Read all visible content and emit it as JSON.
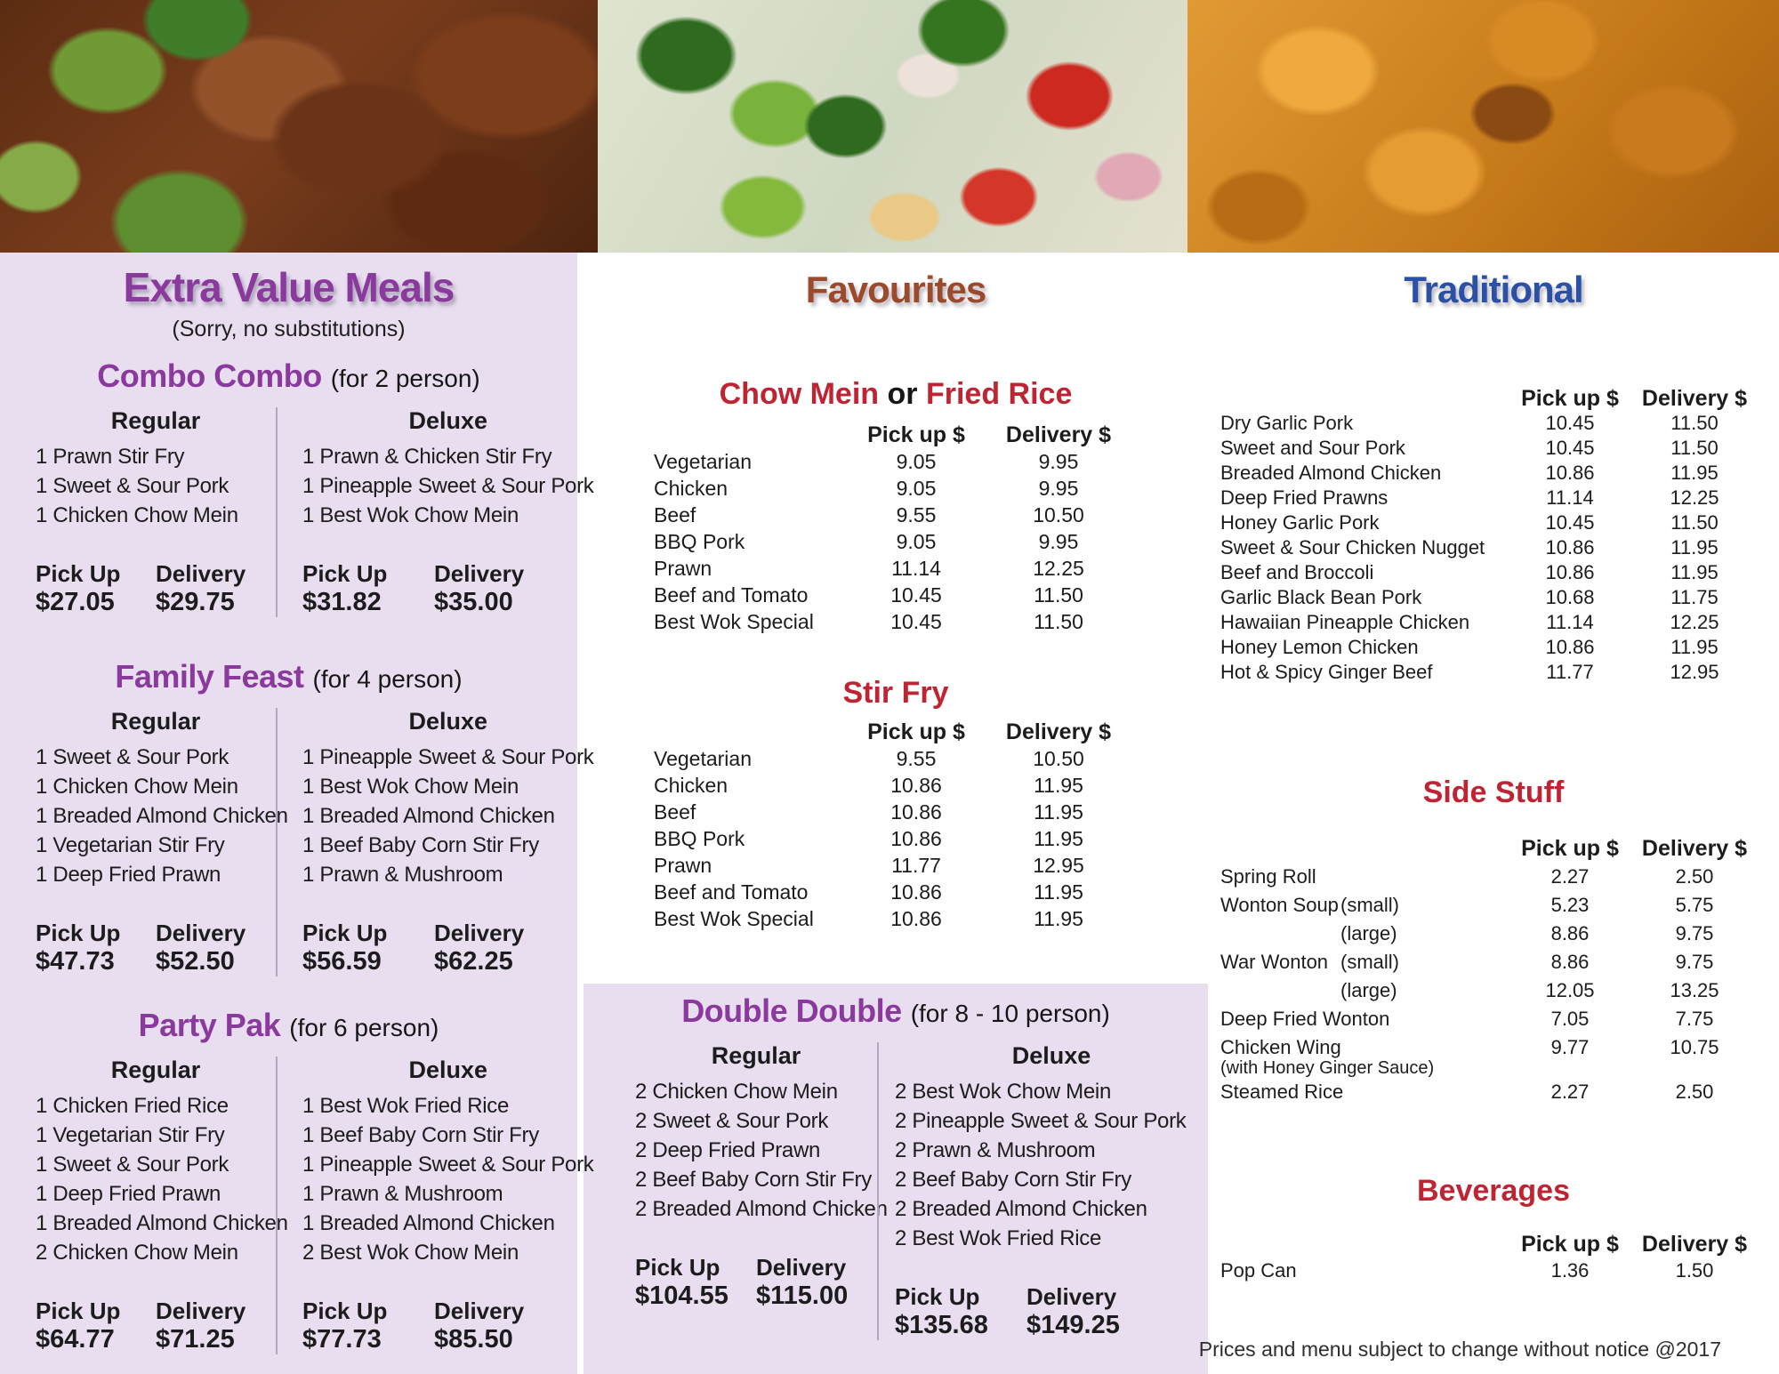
{
  "colors": {
    "purple": "#8a3a9c",
    "panel": "#e8def0",
    "red": "#bf2433",
    "blue": "#2b50a5",
    "brown": "#9c4a2c",
    "ink": "#1c1c1c"
  },
  "photos": {
    "left": "beef and broccoli dish",
    "middle": "vegetable stir fry dish",
    "right": "orange fried chicken dish"
  },
  "labels": {
    "regular": "Regular",
    "deluxe": "Deluxe",
    "pickup": "Pick Up",
    "delivery": "Delivery",
    "col_pickup": "Pick up $",
    "col_delivery": "Delivery $"
  },
  "extra_value": {
    "title": "Extra Value Meals",
    "subtitle": "(Sorry, no substitutions)",
    "combos": [
      {
        "name": "Combo Combo",
        "serves": "(for 2 person)",
        "regular": {
          "items": [
            "1 Prawn Stir Fry",
            "1 Sweet & Sour Pork",
            "1 Chicken Chow Mein"
          ],
          "pickup": "$27.05",
          "delivery": "$29.75"
        },
        "deluxe": {
          "items": [
            "1 Prawn & Chicken Stir Fry",
            "1 Pineapple Sweet & Sour Pork",
            "1 Best Wok Chow Mein"
          ],
          "pickup": "$31.82",
          "delivery": "$35.00"
        }
      },
      {
        "name": "Family Feast",
        "serves": "(for 4 person)",
        "regular": {
          "items": [
            "1 Sweet & Sour Pork",
            "1 Chicken Chow Mein",
            "1 Breaded Almond Chicken",
            "1 Vegetarian Stir Fry",
            "1 Deep Fried Prawn"
          ],
          "pickup": "$47.73",
          "delivery": "$52.50"
        },
        "deluxe": {
          "items": [
            "1 Pineapple Sweet & Sour Pork",
            "1 Best Wok Chow Mein",
            "1 Breaded Almond Chicken",
            "1 Beef Baby Corn Stir Fry",
            "1 Prawn & Mushroom"
          ],
          "pickup": "$56.59",
          "delivery": "$62.25"
        }
      },
      {
        "name": "Party Pak",
        "serves": "(for 6 person)",
        "regular": {
          "items": [
            "1 Chicken Fried Rice",
            "1 Vegetarian Stir Fry",
            "1 Sweet & Sour Pork",
            "1 Deep Fried Prawn",
            "1 Breaded Almond Chicken",
            "2 Chicken Chow Mein"
          ],
          "pickup": "$64.77",
          "delivery": "$71.25"
        },
        "deluxe": {
          "items": [
            "1 Best Wok Fried Rice",
            "1 Beef Baby Corn Stir Fry",
            "1 Pineapple Sweet & Sour Pork",
            "1 Prawn & Mushroom",
            "1 Breaded Almond Chicken",
            "2 Best Wok Chow Mein"
          ],
          "pickup": "$77.73",
          "delivery": "$85.50"
        }
      }
    ]
  },
  "favourites": {
    "title": "Favourites",
    "sections": [
      {
        "title_parts": [
          {
            "text": "Chow Mein",
            "color": "red"
          },
          {
            "text": " or ",
            "color": "dark"
          },
          {
            "text": "Fried Rice",
            "color": "red"
          }
        ],
        "rows": [
          {
            "label": "Vegetarian",
            "pickup": "9.05",
            "delivery": "9.95"
          },
          {
            "label": "Chicken",
            "pickup": "9.05",
            "delivery": "9.95"
          },
          {
            "label": "Beef",
            "pickup": "9.55",
            "delivery": "10.50"
          },
          {
            "label": "BBQ Pork",
            "pickup": "9.05",
            "delivery": "9.95"
          },
          {
            "label": "Prawn",
            "pickup": "11.14",
            "delivery": "12.25"
          },
          {
            "label": "Beef and Tomato",
            "pickup": "10.45",
            "delivery": "11.50"
          },
          {
            "label": "Best Wok Special",
            "pickup": "10.45",
            "delivery": "11.50"
          }
        ]
      },
      {
        "title_parts": [
          {
            "text": "Stir Fry",
            "color": "red"
          }
        ],
        "rows": [
          {
            "label": "Vegetarian",
            "pickup": "9.55",
            "delivery": "10.50"
          },
          {
            "label": "Chicken",
            "pickup": "10.86",
            "delivery": "11.95"
          },
          {
            "label": "Beef",
            "pickup": "10.86",
            "delivery": "11.95"
          },
          {
            "label": "BBQ Pork",
            "pickup": "10.86",
            "delivery": "11.95"
          },
          {
            "label": "Prawn",
            "pickup": "11.77",
            "delivery": "12.95"
          },
          {
            "label": "Beef and Tomato",
            "pickup": "10.86",
            "delivery": "11.95"
          },
          {
            "label": "Best Wok Special",
            "pickup": "10.86",
            "delivery": "11.95"
          }
        ]
      }
    ]
  },
  "double_double": {
    "name": "Double Double",
    "serves": "(for 8 - 10 person)",
    "regular": {
      "items": [
        "2 Chicken Chow Mein",
        "2 Sweet & Sour Pork",
        "2 Deep Fried Prawn",
        "2 Beef Baby Corn Stir Fry",
        "2 Breaded Almond Chicken"
      ],
      "pickup": "$104.55",
      "delivery": "$115.00"
    },
    "deluxe": {
      "items": [
        "2 Best Wok Chow Mein",
        "2 Pineapple Sweet & Sour Pork",
        "2 Prawn & Mushroom",
        "2 Beef Baby Corn Stir Fry",
        "2 Breaded Almond Chicken",
        "2 Best Wok Fried Rice"
      ],
      "pickup": "$135.68",
      "delivery": "$149.25"
    }
  },
  "traditional": {
    "title": "Traditional",
    "rows": [
      {
        "label": "Dry Garlic Pork",
        "pickup": "10.45",
        "delivery": "11.50"
      },
      {
        "label": "Sweet and Sour Pork",
        "pickup": "10.45",
        "delivery": "11.50"
      },
      {
        "label": "Breaded Almond Chicken",
        "pickup": "10.86",
        "delivery": "11.95"
      },
      {
        "label": "Deep Fried Prawns",
        "pickup": "11.14",
        "delivery": "12.25"
      },
      {
        "label": "Honey Garlic Pork",
        "pickup": "10.45",
        "delivery": "11.50"
      },
      {
        "label": "Sweet & Sour Chicken Nugget",
        "pickup": "10.86",
        "delivery": "11.95"
      },
      {
        "label": "Beef and Broccoli",
        "pickup": "10.86",
        "delivery": "11.95"
      },
      {
        "label": "Garlic Black Bean Pork",
        "pickup": "10.68",
        "delivery": "11.75"
      },
      {
        "label": "Hawaiian Pineapple Chicken",
        "pickup": "11.14",
        "delivery": "12.25"
      },
      {
        "label": "Honey Lemon Chicken",
        "pickup": "10.86",
        "delivery": "11.95"
      },
      {
        "label": "Hot & Spicy Ginger Beef",
        "pickup": "11.77",
        "delivery": "12.95"
      }
    ]
  },
  "side_stuff": {
    "title": "Side Stuff",
    "rows": [
      {
        "label": "Spring Roll",
        "pickup": "2.27",
        "delivery": "2.50"
      },
      {
        "label": "Wonton Soup",
        "size": "(small)",
        "pickup": "5.23",
        "delivery": "5.75"
      },
      {
        "label": "",
        "size": "(large)",
        "pickup": "8.86",
        "delivery": "9.75"
      },
      {
        "label": "War Wonton",
        "size": "(small)",
        "pickup": "8.86",
        "delivery": "9.75"
      },
      {
        "label": "",
        "size": "(large)",
        "pickup": "12.05",
        "delivery": "13.25"
      },
      {
        "label": "Deep Fried Wonton",
        "pickup": "7.05",
        "delivery": "7.75"
      },
      {
        "label": "Chicken Wing",
        "note": "(with Honey Ginger Sauce)",
        "pickup": "9.77",
        "delivery": "10.75"
      },
      {
        "label": "Steamed Rice",
        "pickup": "2.27",
        "delivery": "2.50"
      }
    ]
  },
  "beverages": {
    "title": "Beverages",
    "rows": [
      {
        "label": "Pop Can",
        "pickup": "1.36",
        "delivery": "1.50"
      }
    ]
  },
  "footer": "Prices and menu subject to change without notice @2017"
}
